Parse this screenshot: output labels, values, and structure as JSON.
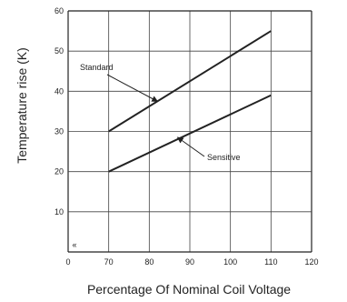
{
  "chart_data": {
    "type": "line",
    "title": "",
    "xlabel": "Percentage Of Nominal Coil Voltage",
    "ylabel": "Temperature rise (K)",
    "xlim": [
      60,
      120
    ],
    "ylim": [
      0,
      60
    ],
    "x_ticks": [
      "0",
      "70",
      "80",
      "90",
      "100",
      "110",
      "120"
    ],
    "y_ticks": [
      "10",
      "20",
      "30",
      "40",
      "50",
      "60"
    ],
    "axis_break_symbol": "«",
    "grid": true,
    "series": [
      {
        "name": "Standard",
        "x": [
          70,
          110
        ],
        "y": [
          30,
          55
        ],
        "color": "#222222"
      },
      {
        "name": "Sensitive",
        "x": [
          70,
          110
        ],
        "y": [
          20,
          39
        ],
        "color": "#222222"
      }
    ],
    "annotations": [
      {
        "text": "Standard",
        "points_to": {
          "x": 82,
          "y": 37.5
        }
      },
      {
        "text": "Sensitive",
        "points_to": {
          "x": 87,
          "y": 28.5
        }
      }
    ]
  }
}
